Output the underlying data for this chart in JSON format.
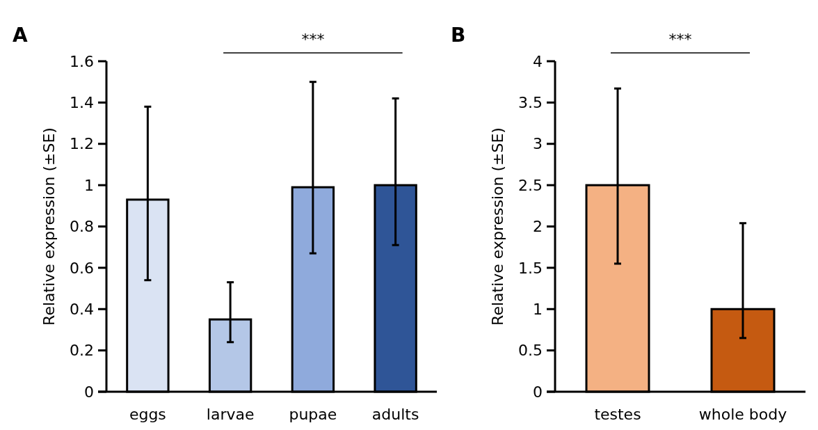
{
  "chart_data": [
    {
      "type": "bar",
      "title": "A",
      "ylabel": "Relative expression (±SE)",
      "categories": [
        "eggs",
        "larvae",
        "pupae",
        "adults"
      ],
      "values": [
        0.93,
        0.35,
        0.99,
        1.0
      ],
      "colors": [
        "#dae3f3",
        "#b4c7e7",
        "#8faadc",
        "#2f5597"
      ],
      "errors": [
        [
          0.54,
          1.38
        ],
        [
          0.24,
          0.53
        ],
        [
          0.67,
          1.5
        ],
        [
          0.71,
          1.42
        ]
      ],
      "ylim": [
        0,
        1.6
      ],
      "yticks": [
        0,
        0.2,
        0.4,
        0.6,
        0.8,
        1,
        1.2,
        1.4,
        1.6
      ],
      "grid": false,
      "annotations": [
        "***"
      ]
    },
    {
      "type": "bar",
      "title": "B",
      "ylabel": "Relative expression (±SE)",
      "categories": [
        "testes",
        "whole body"
      ],
      "values": [
        2.5,
        1.0
      ],
      "colors": [
        "#f4b183",
        "#c55a11"
      ],
      "errors": [
        [
          1.55,
          3.67
        ],
        [
          0.65,
          2.04
        ]
      ],
      "ylim": [
        0,
        4
      ],
      "yticks": [
        0,
        0.5,
        1,
        1.5,
        2,
        2.5,
        3,
        3.5,
        4
      ],
      "grid": false,
      "annotations": [
        "***"
      ]
    }
  ]
}
